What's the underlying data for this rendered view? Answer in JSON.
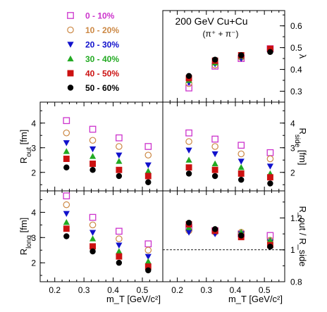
{
  "title": "200 GeV Cu+Cu",
  "subtitle": "(π⁺ + π⁻)",
  "legend": [
    {
      "label": "0 - 10%",
      "color": "#cc33cc",
      "marker": "square-open"
    },
    {
      "label": "10 - 20%",
      "color": "#cc8844",
      "marker": "circle-open"
    },
    {
      "label": "20 - 30%",
      "color": "#1111cc",
      "marker": "triangle-down"
    },
    {
      "label": "30 - 40%",
      "color": "#22aa22",
      "marker": "triangle-up"
    },
    {
      "label": "40 - 50%",
      "color": "#cc1111",
      "marker": "square"
    },
    {
      "label": "50 - 60%",
      "color": "#000000",
      "marker": "circle"
    }
  ],
  "chart_data": [
    {
      "type": "scatter",
      "panel": "top-right",
      "xlabel": "",
      "ylabel": "λ",
      "xlim": [
        0.15,
        0.57
      ],
      "ylim": [
        0.25,
        0.67
      ],
      "yticks": [
        "0.3",
        "0.4",
        "0.5",
        "0.6"
      ],
      "x": [
        0.24,
        0.33,
        0.42,
        0.52
      ],
      "series": [
        {
          "name": "0 - 10%",
          "values": [
            0.315,
            0.415,
            0.45,
            0.495
          ]
        },
        {
          "name": "10 - 20%",
          "values": [
            0.335,
            0.42,
            0.455,
            0.49
          ]
        },
        {
          "name": "20 - 30%",
          "values": [
            0.34,
            0.425,
            0.45,
            0.49
          ]
        },
        {
          "name": "30 - 40%",
          "values": [
            0.35,
            0.43,
            0.46,
            0.49
          ]
        },
        {
          "name": "40 - 50%",
          "values": [
            0.36,
            0.44,
            0.465,
            0.495
          ]
        },
        {
          "name": "50 - 60%",
          "values": [
            0.37,
            0.445,
            0.465,
            0.48
          ]
        }
      ]
    },
    {
      "type": "scatter",
      "panel": "middle-left",
      "xlabel": "",
      "ylabel": "R_out [fm]",
      "ylabel_main": "R",
      "ylabel_sub": "out",
      "ylabel_unit": " [fm]",
      "xlim": [
        0.15,
        0.57
      ],
      "ylim": [
        1.25,
        4.85
      ],
      "yticks": [
        "2",
        "3",
        "4"
      ],
      "x": [
        0.24,
        0.33,
        0.42,
        0.52
      ],
      "series": [
        {
          "name": "0 - 10%",
          "values": [
            4.1,
            3.75,
            3.4,
            3.05
          ]
        },
        {
          "name": "10 - 20%",
          "values": [
            3.6,
            3.3,
            3.05,
            2.7
          ]
        },
        {
          "name": "20 - 30%",
          "values": [
            3.2,
            2.95,
            2.7,
            2.3
          ]
        },
        {
          "name": "30 - 40%",
          "values": [
            2.85,
            2.65,
            2.45,
            2.05
          ]
        },
        {
          "name": "40 - 50%",
          "values": [
            2.55,
            2.35,
            2.1,
            1.85
          ]
        },
        {
          "name": "50 - 60%",
          "values": [
            2.2,
            2.1,
            1.85,
            1.6
          ]
        }
      ]
    },
    {
      "type": "scatter",
      "panel": "middle-right",
      "xlabel": "",
      "ylabel": "R_side [fm]",
      "ylabel_main": "R",
      "ylabel_sub": "side",
      "ylabel_unit": " [fm]",
      "xlim": [
        0.15,
        0.57
      ],
      "ylim": [
        1.25,
        4.85
      ],
      "yticks": [
        "2",
        "3",
        "4"
      ],
      "x": [
        0.24,
        0.33,
        0.42,
        0.52
      ],
      "series": [
        {
          "name": "0 - 10%",
          "values": [
            3.6,
            3.35,
            3.1,
            2.8
          ]
        },
        {
          "name": "10 - 20%",
          "values": [
            3.25,
            3.05,
            2.75,
            2.55
          ]
        },
        {
          "name": "20 - 30%",
          "values": [
            2.9,
            2.75,
            2.45,
            2.25
          ]
        },
        {
          "name": "30 - 40%",
          "values": [
            2.5,
            2.35,
            2.2,
            1.95
          ]
        },
        {
          "name": "40 - 50%",
          "values": [
            2.2,
            2.1,
            1.95,
            1.8
          ]
        },
        {
          "name": "50 - 60%",
          "values": [
            1.95,
            1.85,
            1.7,
            1.55
          ]
        }
      ]
    },
    {
      "type": "scatter",
      "panel": "bottom-left",
      "xlabel": "m_T [GeV/c²]",
      "ylabel": "R_long [fm]",
      "ylabel_main": "R",
      "ylabel_sub": "long",
      "ylabel_unit": " [fm]",
      "xlim": [
        0.15,
        0.57
      ],
      "ylim": [
        1.25,
        4.85
      ],
      "yticks": [
        "2",
        "3",
        "4"
      ],
      "xticks": [
        "0.2",
        "0.3",
        "0.4",
        "0.5"
      ],
      "x": [
        0.24,
        0.33,
        0.42,
        0.52
      ],
      "series": [
        {
          "name": "0 - 10%",
          "values": [
            4.65,
            3.8,
            3.25,
            2.75
          ]
        },
        {
          "name": "10 - 20%",
          "values": [
            4.3,
            3.5,
            2.95,
            2.5
          ]
        },
        {
          "name": "20 - 30%",
          "values": [
            3.95,
            3.2,
            2.7,
            2.25
          ]
        },
        {
          "name": "30 - 40%",
          "values": [
            3.6,
            2.95,
            2.45,
            2.05
          ]
        },
        {
          "name": "40 - 50%",
          "values": [
            3.35,
            2.65,
            2.25,
            1.85
          ]
        },
        {
          "name": "50 - 60%",
          "values": [
            3.05,
            2.45,
            2.0,
            1.7
          ]
        }
      ]
    },
    {
      "type": "scatter",
      "panel": "bottom-right",
      "xlabel": "m_T [GeV/c²]",
      "ylabel": "R_out / R_side",
      "xlim": [
        0.15,
        0.57
      ],
      "ylim": [
        0.8,
        1.37
      ],
      "yticks": [
        "0.8",
        "1",
        "1.2"
      ],
      "xticks": [
        "0.2",
        "0.3",
        "0.4",
        "0.5"
      ],
      "reference_line": 1.0,
      "x": [
        0.24,
        0.33,
        0.42,
        0.52
      ],
      "series": [
        {
          "name": "0 - 10%",
          "values": [
            1.14,
            1.12,
            1.1,
            1.09
          ]
        },
        {
          "name": "10 - 20%",
          "values": [
            1.12,
            1.11,
            1.11,
            1.06
          ]
        },
        {
          "name": "20 - 30%",
          "values": [
            1.11,
            1.1,
            1.1,
            1.05
          ]
        },
        {
          "name": "30 - 40%",
          "values": [
            1.14,
            1.13,
            1.11,
            1.06
          ]
        },
        {
          "name": "40 - 50%",
          "values": [
            1.16,
            1.12,
            1.08,
            1.03
          ]
        },
        {
          "name": "50 - 60%",
          "values": [
            1.17,
            1.13,
            1.09,
            1.02
          ]
        }
      ]
    }
  ]
}
